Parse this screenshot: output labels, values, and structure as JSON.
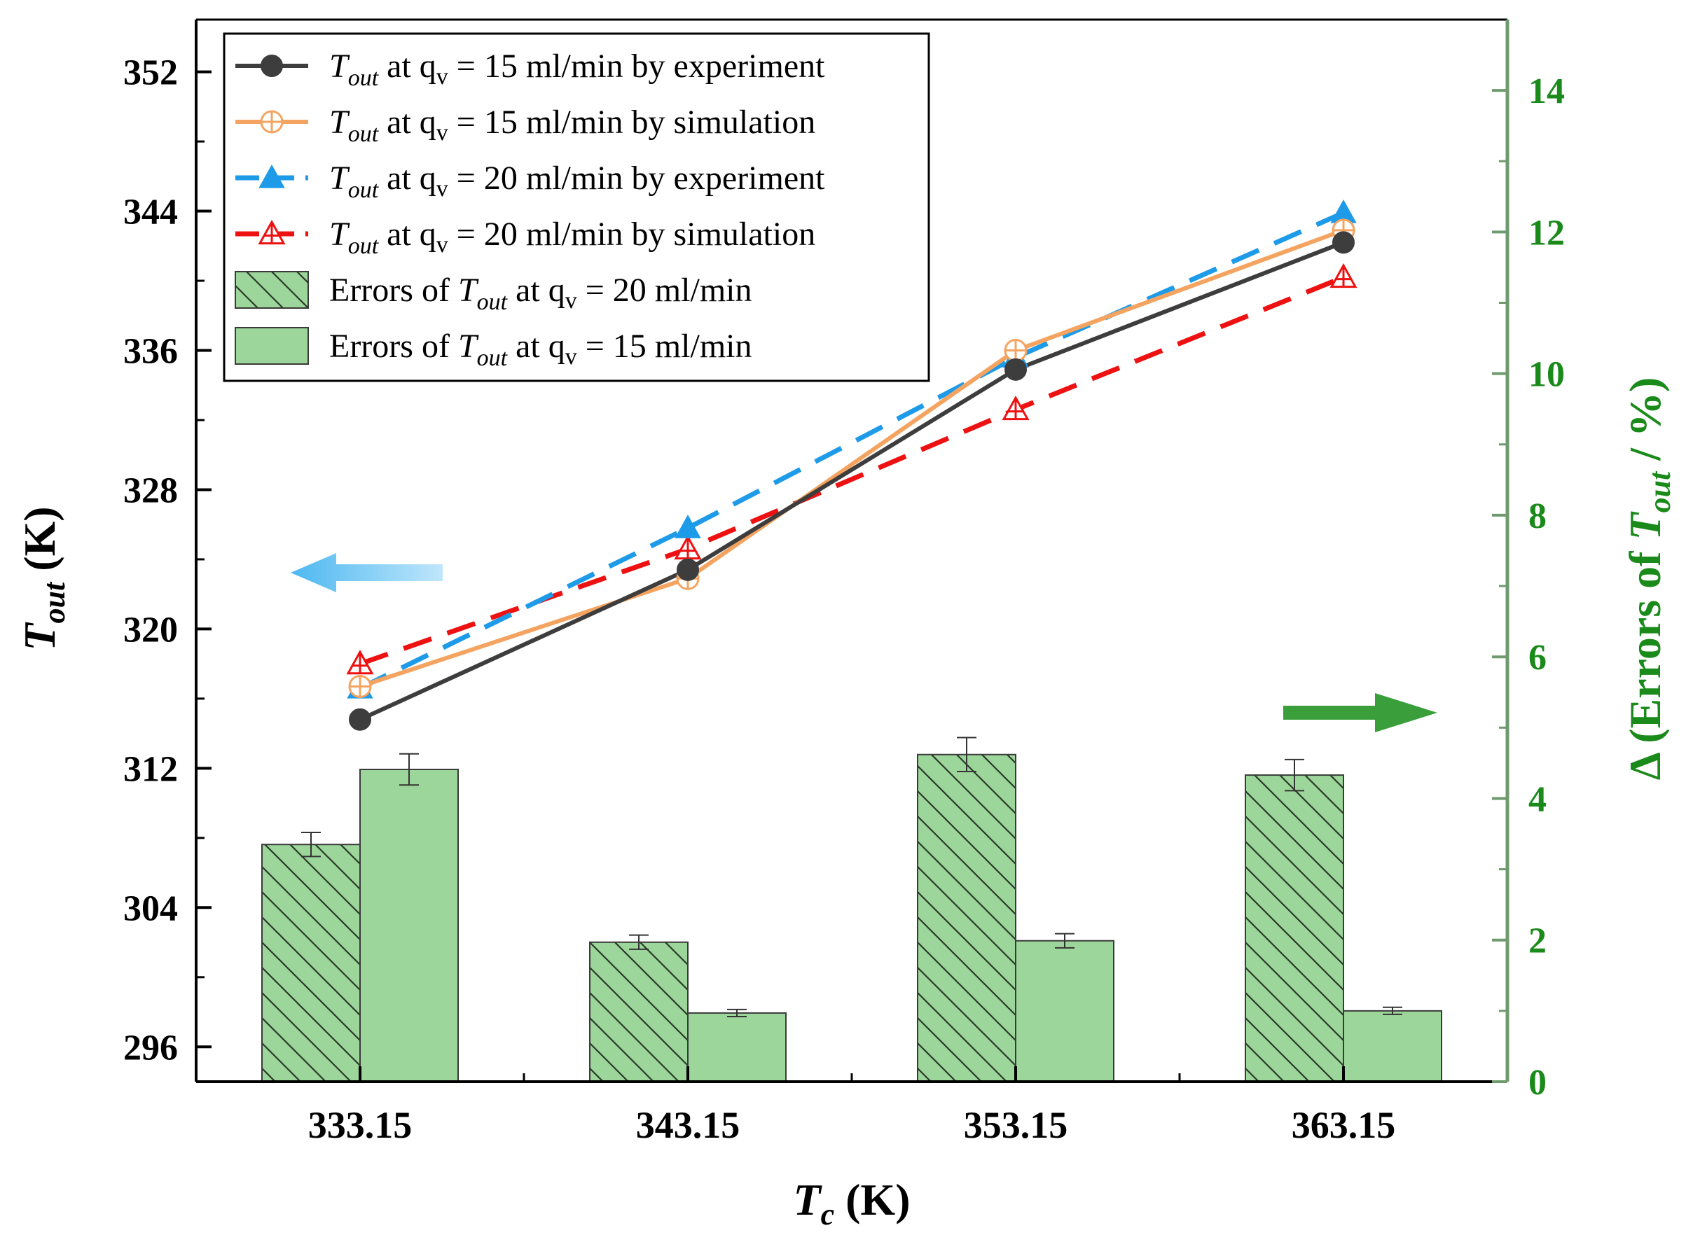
{
  "chart_data": {
    "type": "bar+line",
    "title": "",
    "x": {
      "label": "T",
      "label_sub": "c",
      "label_unit": " (K)",
      "categories": [
        "333.15",
        "343.15",
        "353.15",
        "363.15"
      ]
    },
    "y_left": {
      "label": "T",
      "label_sub": "out",
      "label_unit": " (K)",
      "range": [
        294,
        355
      ],
      "ticks": [
        296,
        304,
        312,
        320,
        328,
        336,
        344,
        352
      ]
    },
    "y_right": {
      "label_prefix": "Δ (Errors of ",
      "label_var": "T",
      "label_sub": "out",
      "label_suffix": " / %)",
      "range": [
        0,
        15
      ],
      "ticks": [
        0,
        2,
        4,
        6,
        8,
        10,
        12,
        14
      ],
      "color": "#1a8a1a"
    },
    "lines": [
      {
        "legend": {
          "var": "T",
          "sub": "out",
          "pre": " at q",
          "qsub": "v",
          "post": " = 15 ml/min by experiment"
        },
        "values": [
          314.8,
          323.4,
          334.9,
          342.2
        ],
        "color": "#3d3d3d",
        "dash": "solid",
        "marker": "circle-filled"
      },
      {
        "legend": {
          "var": "T",
          "sub": "out",
          "pre": " at q",
          "qsub": "v",
          "post": " = 15 ml/min by simulation"
        },
        "values": [
          316.7,
          322.9,
          336.0,
          342.9
        ],
        "color": "#f4a460",
        "dash": "solid",
        "marker": "circle-cross"
      },
      {
        "legend": {
          "var": "T",
          "sub": "out",
          "pre": " at q",
          "qsub": "v",
          "post": " = 20 ml/min by experiment"
        },
        "values": [
          316.6,
          325.8,
          335.6,
          343.9
        ],
        "color": "#1e9be8",
        "dash": "dashed",
        "marker": "triangle-filled"
      },
      {
        "legend": {
          "var": "T",
          "sub": "out",
          "pre": " at q",
          "qsub": "v",
          "post": " = 20 ml/min by simulation"
        },
        "values": [
          318.0,
          324.6,
          332.6,
          340.2
        ],
        "color": "#ee1111",
        "dash": "dashed",
        "marker": "triangle-cross"
      }
    ],
    "bars": [
      {
        "legend": {
          "pre": "Errors of ",
          "var": "T",
          "sub": "out",
          "mid": " at q",
          "qsub": "v",
          "post": " = 20 ml/min"
        },
        "values": [
          3.35,
          1.97,
          4.62,
          4.33
        ],
        "errors": [
          0.17,
          0.1,
          0.24,
          0.22
        ],
        "color": "#9dd69a",
        "pattern": "hatched"
      },
      {
        "legend": {
          "pre": "Errors of ",
          "var": "T",
          "sub": "out",
          "mid": " at q",
          "qsub": "v",
          "post": " = 15 ml/min"
        },
        "values": [
          4.41,
          0.97,
          1.99,
          1.0
        ],
        "errors": [
          0.22,
          0.05,
          0.1,
          0.05
        ],
        "color": "#9dd69a",
        "pattern": "solid"
      }
    ],
    "annotations": [
      {
        "type": "arrow",
        "direction": "left",
        "color": "#4db8f0",
        "meaning": "left-axis"
      },
      {
        "type": "arrow",
        "direction": "right",
        "color": "#3a9e3a",
        "meaning": "right-axis"
      }
    ],
    "legend_position": "top-left",
    "grid": false
  }
}
